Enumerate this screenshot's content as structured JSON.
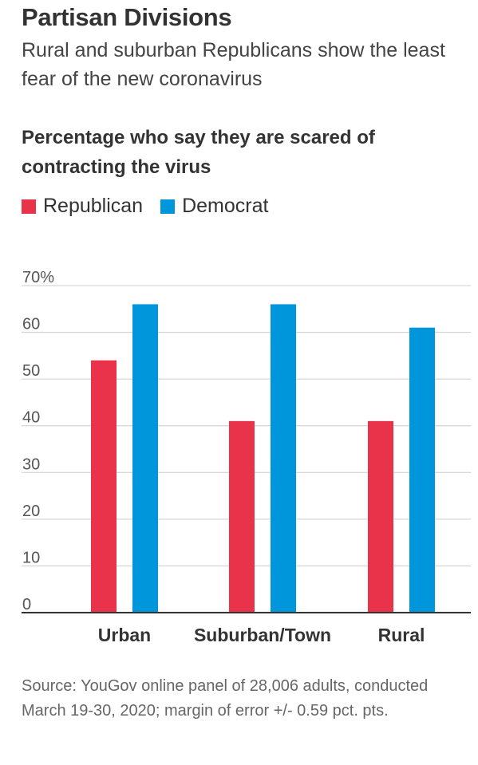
{
  "header": {
    "title": "Partisan Divisions",
    "subtitle": "Rural and suburban Republicans show the least fear of the new coronavirus"
  },
  "chart_heading": "Percentage who say they are scared of contracting the virus",
  "colors": {
    "republican": "#e8334a",
    "democrat": "#0096db",
    "grid": "#cccccc",
    "axis": "#333333"
  },
  "footer": {
    "source": "Source: YouGov online panel of 28,006 adults, conducted March 19-30, 2020; margin of error +/- 0.59 pct. pts."
  },
  "chart_data": {
    "type": "bar",
    "categories": [
      "Urban",
      "Suburban/Town",
      "Rural"
    ],
    "series": [
      {
        "name": "Republican",
        "values": [
          54,
          41,
          41
        ]
      },
      {
        "name": "Democrat",
        "values": [
          66,
          66,
          61
        ]
      }
    ],
    "y_ticks": [
      "0",
      "10",
      "20",
      "30",
      "40",
      "50",
      "60",
      "70%"
    ],
    "ylim": [
      0,
      70
    ],
    "grid": true,
    "legend": "top-left",
    "xlabel": "",
    "ylabel": ""
  }
}
